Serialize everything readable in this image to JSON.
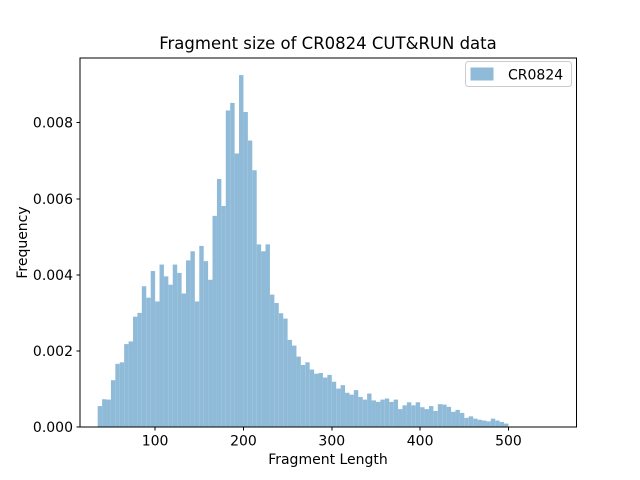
{
  "chart_data": {
    "type": "bar",
    "title": "Fragment size of CR0824 CUT&RUN data",
    "xlabel": "Fragment Length",
    "ylabel": "Frequency",
    "legend": [
      "CR0824"
    ],
    "legend_position": "upper right",
    "bar_color": "#8fbbd9",
    "axis_color": "#000000",
    "background_color": "#ffffff",
    "grid": false,
    "bin_start": 35,
    "bin_width": 5,
    "frequencies": [
      0.00055,
      0.00073,
      0.00072,
      0.00123,
      0.00166,
      0.0017,
      0.00218,
      0.00225,
      0.0029,
      0.003,
      0.0037,
      0.0034,
      0.0041,
      0.0033,
      0.00427,
      0.00396,
      0.00374,
      0.00427,
      0.00405,
      0.00351,
      0.00438,
      0.00462,
      0.0033,
      0.00476,
      0.00436,
      0.00387,
      0.00555,
      0.00652,
      0.00581,
      0.00832,
      0.00852,
      0.00719,
      0.00925,
      0.00828,
      0.00753,
      0.00675,
      0.0048,
      0.00462,
      0.0048,
      0.00348,
      0.00326,
      0.00299,
      0.00285,
      0.00229,
      0.00214,
      0.00185,
      0.00163,
      0.0017,
      0.00151,
      0.0014,
      0.00142,
      0.0013,
      0.00137,
      0.00119,
      0.00101,
      0.0011,
      0.0009,
      0.00085,
      0.00097,
      0.00079,
      0.00072,
      0.00088,
      0.0007,
      0.00066,
      0.00072,
      0.00075,
      0.00066,
      0.00072,
      0.00047,
      0.00057,
      0.00065,
      0.00057,
      0.00065,
      0.00052,
      0.00047,
      0.00055,
      0.00042,
      0.0006,
      0.00059,
      0.00053,
      0.0004,
      0.00045,
      0.00037,
      0.00024,
      0.00028,
      0.00022,
      0.00019,
      0.00017,
      0.00015,
      0.00022,
      0.00017,
      0.00013,
      9e-05
    ],
    "x_ticks": [
      100,
      200,
      300,
      400,
      500
    ],
    "x_tick_labels": [
      "100",
      "200",
      "300",
      "400",
      "500"
    ],
    "y_ticks": [
      0.0,
      0.002,
      0.004,
      0.006,
      0.008
    ],
    "y_tick_labels": [
      "0.000",
      "0.002",
      "0.004",
      "0.006",
      "0.008"
    ],
    "xlim": [
      15,
      577
    ],
    "ylim": [
      0,
      0.0097
    ]
  }
}
